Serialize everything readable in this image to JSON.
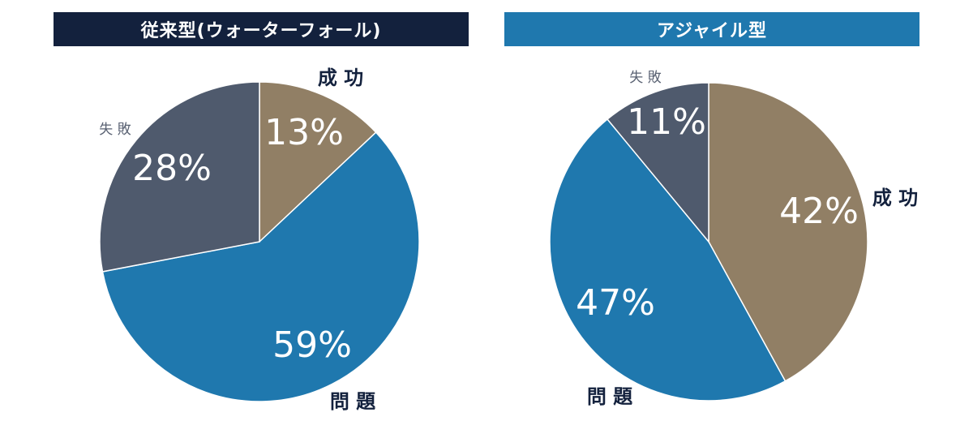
{
  "colors": {
    "left_header_bg": "#13213D",
    "right_header_bg": "#1F78AE",
    "success": "#917F65",
    "problem": "#1F78AE",
    "failure": "#4F5A6D",
    "slice_label": "#ffffff",
    "category_label": "#13213D",
    "failure_label": "#5A6273"
  },
  "chart_data": [
    {
      "type": "pie",
      "title": "従来型(ウォーターフォール)",
      "slices": [
        {
          "key": "success",
          "label": "成 功",
          "value": 13,
          "value_label": "13%"
        },
        {
          "key": "problem",
          "label": "問 題",
          "value": 59,
          "value_label": "59%"
        },
        {
          "key": "failure",
          "label": "失 敗",
          "value": 28,
          "value_label": "28%"
        }
      ]
    },
    {
      "type": "pie",
      "title": "アジャイル型",
      "slices": [
        {
          "key": "success",
          "label": "成 功",
          "value": 42,
          "value_label": "42%"
        },
        {
          "key": "problem",
          "label": "問 題",
          "value": 47,
          "value_label": "47%"
        },
        {
          "key": "failure",
          "label": "失 敗",
          "value": 11,
          "value_label": "11%"
        }
      ]
    }
  ]
}
